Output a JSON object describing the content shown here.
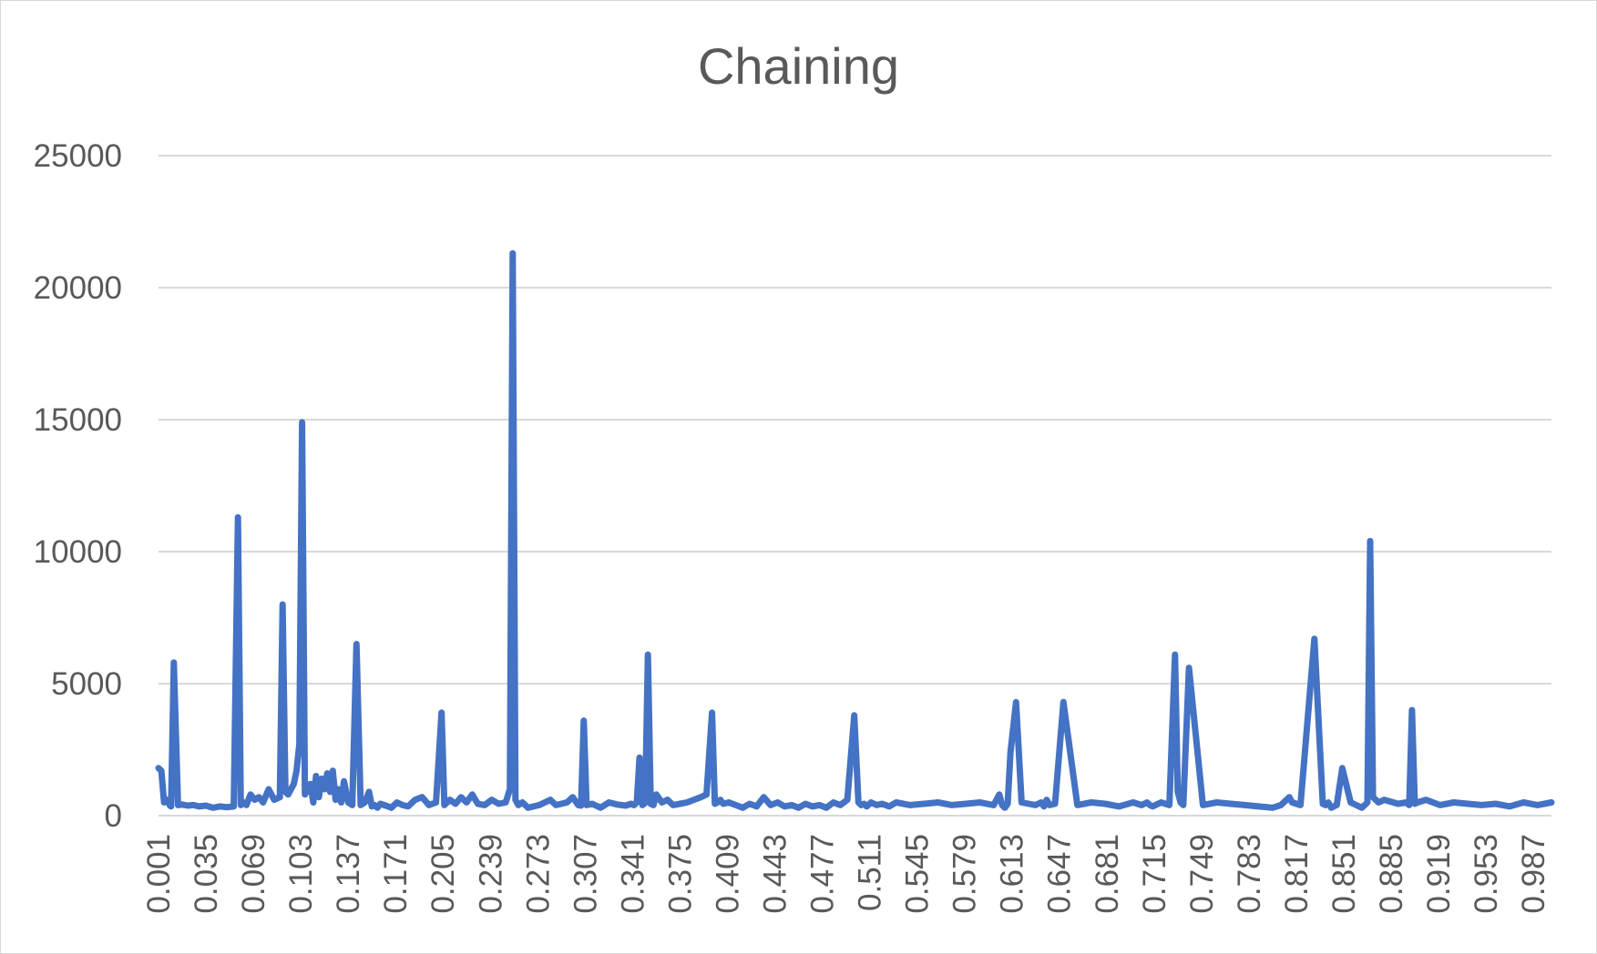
{
  "chart_data": {
    "type": "line",
    "title": "Chaining",
    "xlabel": "",
    "ylabel": "",
    "ylim": [
      0,
      25000
    ],
    "yticks": [
      0,
      5000,
      10000,
      15000,
      20000,
      25000
    ],
    "x_categories": [
      "0.001",
      "0.035",
      "0.069",
      "0.103",
      "0.137",
      "0.171",
      "0.205",
      "0.239",
      "0.273",
      "0.307",
      "0.341",
      "0.375",
      "0.409",
      "0.443",
      "0.477",
      "0.511",
      "0.545",
      "0.579",
      "0.613",
      "0.647",
      "0.681",
      "0.715",
      "0.749",
      "0.783",
      "0.817",
      "0.851",
      "0.885",
      "0.919",
      "0.953",
      "0.987"
    ],
    "x_range": [
      0.001,
      1.0
    ],
    "grid": true,
    "legend": "none",
    "series_color": "#4472c4",
    "series": [
      {
        "x": [
          0.001,
          0.003,
          0.005,
          0.007,
          0.009,
          0.01,
          0.012,
          0.015,
          0.018,
          0.022,
          0.026,
          0.03,
          0.035,
          0.04,
          0.045,
          0.05,
          0.055,
          0.058,
          0.06,
          0.062,
          0.064,
          0.067,
          0.07,
          0.073,
          0.076,
          0.08,
          0.084,
          0.088,
          0.09,
          0.092,
          0.094,
          0.096,
          0.098,
          0.1,
          0.102,
          0.104,
          0.106,
          0.108,
          0.11,
          0.112,
          0.114,
          0.116,
          0.118,
          0.12,
          0.122,
          0.124,
          0.126,
          0.128,
          0.13,
          0.132,
          0.134,
          0.137,
          0.14,
          0.143,
          0.146,
          0.149,
          0.152,
          0.154,
          0.156,
          0.158,
          0.16,
          0.164,
          0.168,
          0.172,
          0.176,
          0.18,
          0.185,
          0.19,
          0.195,
          0.2,
          0.204,
          0.206,
          0.208,
          0.21,
          0.214,
          0.218,
          0.222,
          0.226,
          0.23,
          0.235,
          0.24,
          0.245,
          0.25,
          0.253,
          0.255,
          0.257,
          0.259,
          0.262,
          0.266,
          0.27,
          0.274,
          0.278,
          0.282,
          0.286,
          0.29,
          0.294,
          0.298,
          0.302,
          0.304,
          0.306,
          0.308,
          0.312,
          0.318,
          0.324,
          0.33,
          0.336,
          0.34,
          0.342,
          0.344,
          0.346,
          0.348,
          0.35,
          0.352,
          0.354,
          0.356,
          0.358,
          0.362,
          0.366,
          0.37,
          0.375,
          0.38,
          0.385,
          0.39,
          0.394,
          0.398,
          0.4,
          0.402,
          0.404,
          0.406,
          0.41,
          0.415,
          0.42,
          0.425,
          0.43,
          0.435,
          0.44,
          0.445,
          0.45,
          0.455,
          0.46,
          0.465,
          0.47,
          0.475,
          0.48,
          0.485,
          0.49,
          0.495,
          0.5,
          0.503,
          0.505,
          0.507,
          0.509,
          0.512,
          0.516,
          0.52,
          0.525,
          0.53,
          0.54,
          0.55,
          0.56,
          0.57,
          0.58,
          0.59,
          0.6,
          0.604,
          0.606,
          0.608,
          0.61,
          0.612,
          0.616,
          0.62,
          0.625,
          0.63,
          0.634,
          0.636,
          0.638,
          0.64,
          0.644,
          0.65,
          0.66,
          0.67,
          0.68,
          0.69,
          0.7,
          0.706,
          0.708,
          0.71,
          0.712,
          0.714,
          0.72,
          0.726,
          0.73,
          0.732,
          0.734,
          0.736,
          0.74,
          0.75,
          0.76,
          0.77,
          0.78,
          0.79,
          0.8,
          0.806,
          0.808,
          0.81,
          0.812,
          0.814,
          0.82,
          0.83,
          0.836,
          0.838,
          0.84,
          0.842,
          0.846,
          0.85,
          0.856,
          0.86,
          0.864,
          0.866,
          0.868,
          0.87,
          0.872,
          0.876,
          0.88,
          0.89,
          0.896,
          0.898,
          0.9,
          0.902,
          0.904,
          0.91,
          0.92,
          0.93,
          0.94,
          0.95,
          0.96,
          0.97,
          0.98,
          0.99,
          1.0
        ],
        "values": [
          1800,
          1700,
          500,
          600,
          400,
          350,
          5800,
          400,
          420,
          380,
          400,
          350,
          380,
          300,
          350,
          320,
          350,
          11300,
          400,
          500,
          400,
          800,
          600,
          700,
          500,
          1000,
          600,
          700,
          8000,
          900,
          800,
          1000,
          1200,
          1700,
          2700,
          14900,
          800,
          1000,
          1200,
          500,
          1500,
          700,
          1400,
          1000,
          1600,
          900,
          1700,
          600,
          1000,
          500,
          1300,
          500,
          400,
          6500,
          400,
          500,
          900,
          350,
          400,
          300,
          450,
          380,
          300,
          500,
          400,
          350,
          600,
          700,
          400,
          500,
          3900,
          400,
          500,
          600,
          450,
          700,
          500,
          800,
          450,
          400,
          600,
          450,
          500,
          1000,
          21300,
          600,
          400,
          500,
          300,
          350,
          400,
          500,
          600,
          400,
          450,
          500,
          700,
          400,
          380,
          3600,
          400,
          450,
          300,
          500,
          420,
          380,
          450,
          400,
          500,
          2200,
          400,
          480,
          6100,
          450,
          400,
          800,
          500,
          600,
          400,
          450,
          500,
          600,
          700,
          800,
          3900,
          450,
          500,
          600,
          450,
          500,
          400,
          300,
          450,
          350,
          700,
          400,
          500,
          350,
          400,
          300,
          450,
          350,
          400,
          300,
          500,
          400,
          600,
          3800,
          500,
          400,
          450,
          350,
          500,
          400,
          450,
          350,
          500,
          400,
          450,
          500,
          400,
          450,
          500,
          400,
          800,
          400,
          300,
          450,
          2400,
          4300,
          500,
          450,
          400,
          500,
          350,
          600,
          400,
          450,
          4300,
          400,
          500,
          450,
          350,
          500,
          400,
          450,
          500,
          400,
          350,
          500,
          400,
          6100,
          900,
          500,
          400,
          5600,
          400,
          500,
          450,
          400,
          350,
          300,
          400,
          500,
          600,
          700,
          500,
          400,
          6700,
          450,
          400,
          500,
          300,
          400,
          1800,
          500,
          400,
          300,
          400,
          500,
          10400,
          700,
          500,
          600,
          450,
          500,
          400,
          4000,
          450,
          500,
          600,
          400,
          500,
          450,
          400,
          450,
          350,
          500,
          400,
          500
        ]
      }
    ]
  }
}
